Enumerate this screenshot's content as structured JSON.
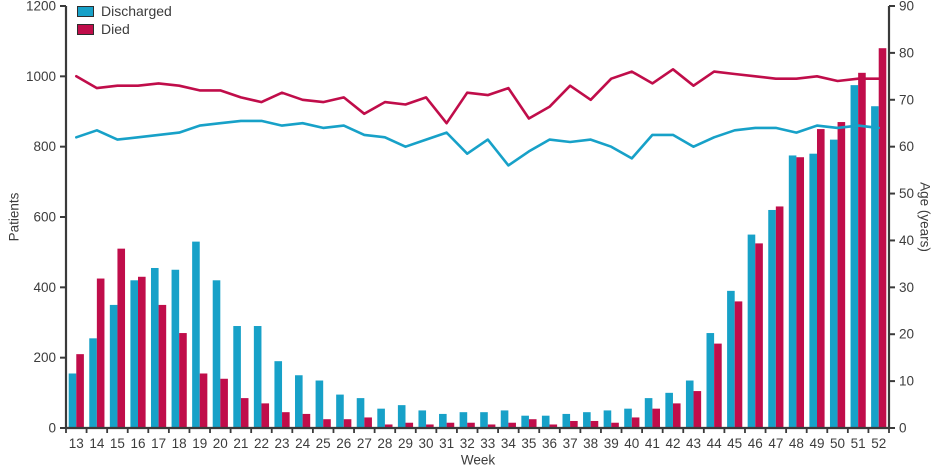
{
  "chart_data": {
    "type": "combo_bar_line",
    "title": "",
    "xlabel": "Week",
    "x_weeks": [
      13,
      14,
      15,
      16,
      17,
      18,
      19,
      20,
      21,
      22,
      23,
      24,
      25,
      26,
      27,
      28,
      29,
      30,
      31,
      32,
      33,
      34,
      35,
      36,
      37,
      38,
      39,
      40,
      41,
      42,
      43,
      44,
      45,
      46,
      47,
      48,
      49,
      50,
      51,
      52
    ],
    "left_axis": {
      "label": "Patients",
      "min": 0,
      "max": 1200,
      "step": 200
    },
    "right_axis": {
      "label": "Age (years)",
      "min": 0,
      "max": 90,
      "step": 10
    },
    "legend": [
      {
        "label": "Discharged",
        "color": "#17A1C8"
      },
      {
        "label": "Died",
        "color": "#C00D4A"
      }
    ],
    "grid": false,
    "legend_position": "top-left",
    "bar_series": [
      {
        "name": "Discharged",
        "axis": "left",
        "color": "#17A1C8",
        "values": [
          155,
          255,
          350,
          420,
          455,
          450,
          530,
          420,
          290,
          290,
          190,
          150,
          135,
          95,
          85,
          55,
          65,
          50,
          40,
          45,
          45,
          50,
          35,
          35,
          40,
          45,
          50,
          55,
          85,
          100,
          135,
          270,
          390,
          550,
          620,
          775,
          780,
          820,
          975,
          915
        ]
      },
      {
        "name": "Died",
        "axis": "left",
        "color": "#C00D4A",
        "values": [
          210,
          425,
          510,
          430,
          350,
          270,
          155,
          140,
          85,
          70,
          45,
          40,
          25,
          25,
          30,
          10,
          15,
          10,
          15,
          15,
          10,
          15,
          25,
          10,
          20,
          20,
          15,
          30,
          55,
          70,
          105,
          240,
          360,
          525,
          630,
          770,
          850,
          870,
          1010,
          1080
        ]
      }
    ],
    "line_series": [
      {
        "name": "Discharged age",
        "axis": "right",
        "color": "#17A1C8",
        "values": [
          62,
          63.5,
          61.5,
          62,
          62.5,
          63,
          64.5,
          65,
          65.5,
          65.5,
          64.5,
          65,
          64,
          64.5,
          62.5,
          62,
          60,
          61.5,
          63,
          58.5,
          61.5,
          56,
          59,
          61.5,
          61,
          61.5,
          60,
          57.5,
          62.5,
          62.5,
          60,
          62,
          63.5,
          64,
          64,
          63,
          64.5,
          64,
          64.5,
          64
        ]
      },
      {
        "name": "Died age",
        "axis": "right",
        "color": "#C00D4A",
        "values": [
          75,
          72.5,
          73,
          73,
          73.5,
          73,
          72,
          72,
          70.5,
          69.5,
          71.5,
          70,
          69.5,
          70.5,
          67,
          69.5,
          69,
          70.5,
          65,
          71.5,
          71,
          72.5,
          66,
          68.5,
          73,
          70,
          74.5,
          76,
          73.5,
          76.5,
          73,
          76,
          75.5,
          75,
          74.5,
          74.5,
          75,
          74,
          74.5,
          74.5
        ]
      }
    ],
    "colors": {
      "axis": "#3a3a3a",
      "text": "#3c3c3c",
      "background": "#ffffff"
    }
  }
}
